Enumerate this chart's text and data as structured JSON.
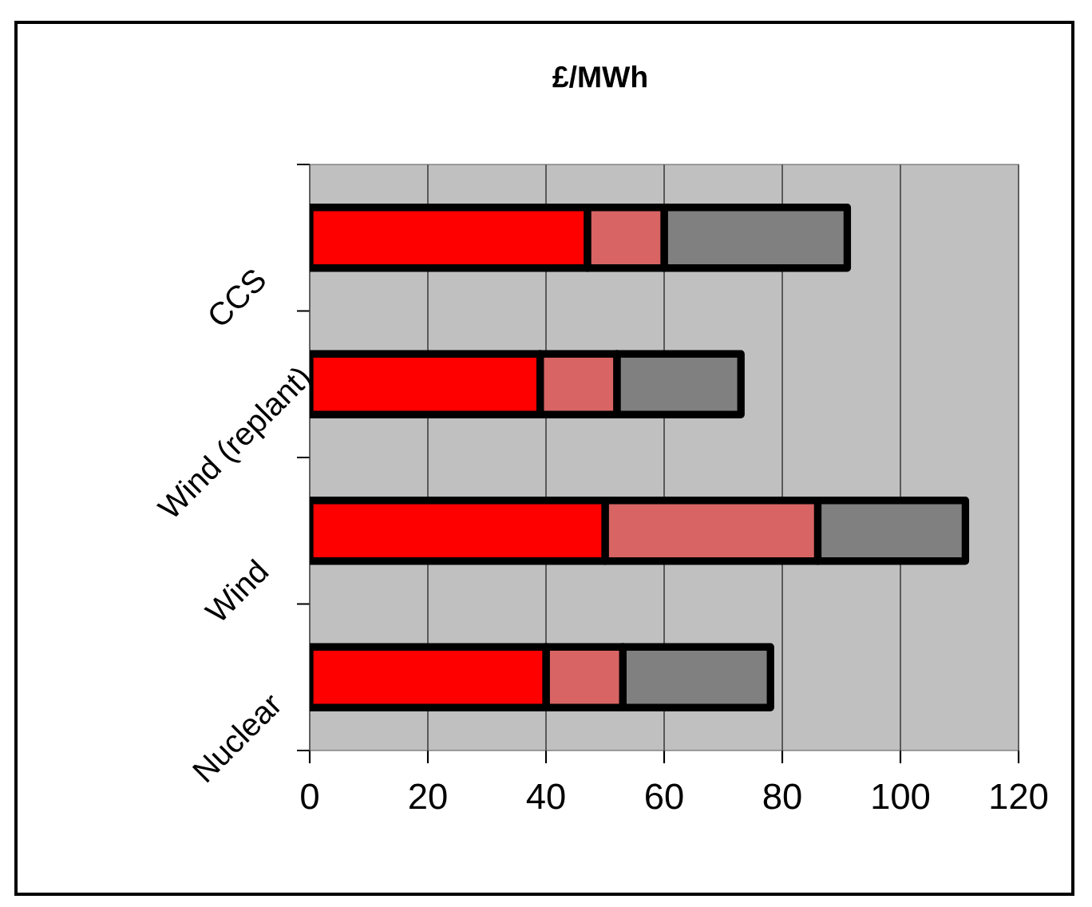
{
  "chart_data": {
    "type": "bar",
    "orientation": "horizontal",
    "stacked": true,
    "title": "£/MWh",
    "categories": [
      "CCS",
      "Wind (replant)",
      "Wind",
      "Nuclear"
    ],
    "series": [
      {
        "color": "#ff0000",
        "values": [
          47,
          39,
          50,
          40
        ]
      },
      {
        "color": "#d86464",
        "values": [
          13,
          13,
          36,
          13
        ]
      },
      {
        "color": "#808080",
        "values": [
          31,
          21,
          25,
          25
        ]
      }
    ],
    "xlim": [
      0,
      120
    ],
    "xticks": [
      0,
      20,
      40,
      60,
      80,
      100,
      120
    ],
    "grid": "x",
    "bands": [
      {
        "axis": "x",
        "from": 0,
        "to": 120,
        "color": "#c0c0c0"
      }
    ]
  }
}
